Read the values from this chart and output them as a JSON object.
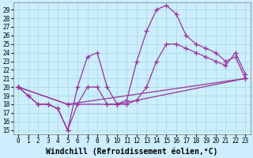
{
  "bg_color": "#cceeff",
  "line_color": "#993399",
  "grid_color": "#aadddd",
  "x_ticks": [
    0,
    1,
    2,
    3,
    4,
    5,
    6,
    7,
    8,
    9,
    10,
    11,
    12,
    13,
    14,
    15,
    16,
    17,
    18,
    19,
    20,
    21,
    22,
    23
  ],
  "y_ticks": [
    15,
    16,
    17,
    18,
    19,
    20,
    21,
    22,
    23,
    24,
    25,
    26,
    27,
    28,
    29
  ],
  "xlim": [
    -0.5,
    23.5
  ],
  "ylim": [
    14.5,
    29.8
  ],
  "line1_x": [
    0,
    1,
    2,
    3,
    4,
    5,
    6,
    7,
    8,
    9,
    10,
    11,
    12,
    13,
    14,
    15,
    16,
    17,
    18,
    19,
    20,
    21,
    22,
    23
  ],
  "line1_y": [
    20.0,
    19.0,
    18.0,
    18.0,
    17.5,
    15.0,
    20.0,
    23.5,
    24.0,
    20.0,
    18.0,
    18.5,
    23.0,
    26.5,
    29.0,
    29.5,
    28.5,
    26.0,
    25.0,
    24.5,
    24.0,
    23.0,
    23.5,
    21.0
  ],
  "line2_x": [
    0,
    1,
    2,
    3,
    4,
    5,
    6,
    7,
    8,
    9,
    10,
    11,
    12,
    13,
    14,
    15,
    16,
    17,
    18,
    19,
    20,
    21,
    22,
    23
  ],
  "line2_y": [
    20.0,
    19.0,
    18.0,
    18.0,
    17.5,
    15.0,
    18.0,
    20.0,
    20.0,
    18.0,
    18.0,
    18.0,
    18.5,
    20.0,
    23.0,
    25.0,
    25.0,
    24.5,
    24.0,
    23.5,
    23.0,
    22.5,
    24.0,
    21.5
  ],
  "line3_x": [
    0,
    5,
    23
  ],
  "line3_y": [
    20.0,
    18.0,
    21.0
  ],
  "line4_x": [
    0,
    5,
    10,
    23
  ],
  "line4_y": [
    20.0,
    18.0,
    18.0,
    21.0
  ],
  "xlabel": "Windchill (Refroidissement éolien,°C)",
  "marker": "+",
  "marker_size": 4,
  "linewidth": 0.9,
  "tick_fontsize": 5.5,
  "xlabel_fontsize": 7.0
}
